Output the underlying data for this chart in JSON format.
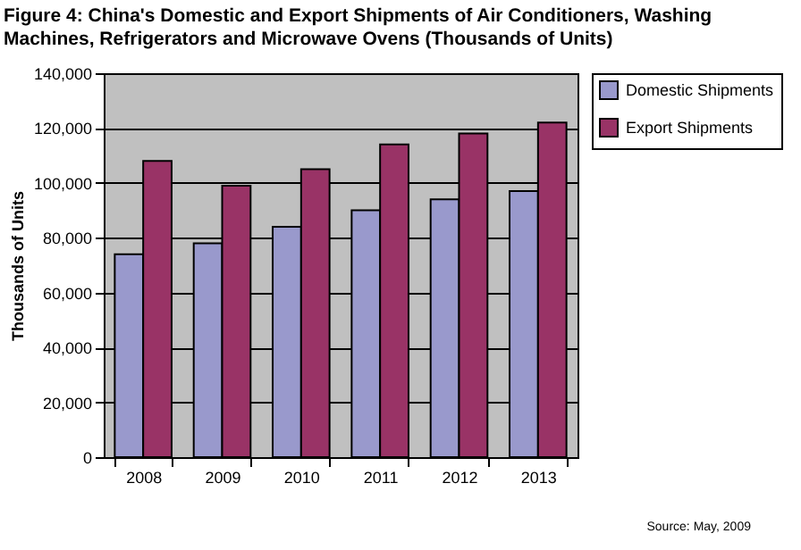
{
  "chart_data": {
    "type": "bar",
    "title": "Figure 4: China's Domestic and Export Shipments of Air Conditioners, Washing Machines, Refrigerators and Microwave Ovens (Thousands of Units)",
    "ylabel": "Thousands of Units",
    "categories": [
      "2008",
      "2009",
      "2010",
      "2011",
      "2012",
      "2013"
    ],
    "series": [
      {
        "name": "Domestic Shipments",
        "color": "#9999cc",
        "values": [
          74000,
          78000,
          84000,
          90000,
          94000,
          97000
        ]
      },
      {
        "name": "Export Shipments",
        "color": "#993366",
        "values": [
          108000,
          99000,
          105000,
          114000,
          118000,
          122000
        ]
      }
    ],
    "ylim": [
      0,
      140000
    ],
    "yticks": [
      0,
      {
        "value": 20000,
        "label": "20,000"
      },
      {
        "value": 40000,
        "label": "40,000"
      },
      {
        "value": 60000,
        "label": "60,000"
      },
      {
        "value": 80000,
        "label": "80,000"
      },
      {
        "value": 100000,
        "label": "100,000"
      },
      {
        "value": 120000,
        "label": "120,000"
      },
      {
        "value": 140000,
        "label": "140,000"
      }
    ],
    "grid": "y",
    "legend": "right",
    "annotations": [
      "Source: May, 2009"
    ]
  }
}
